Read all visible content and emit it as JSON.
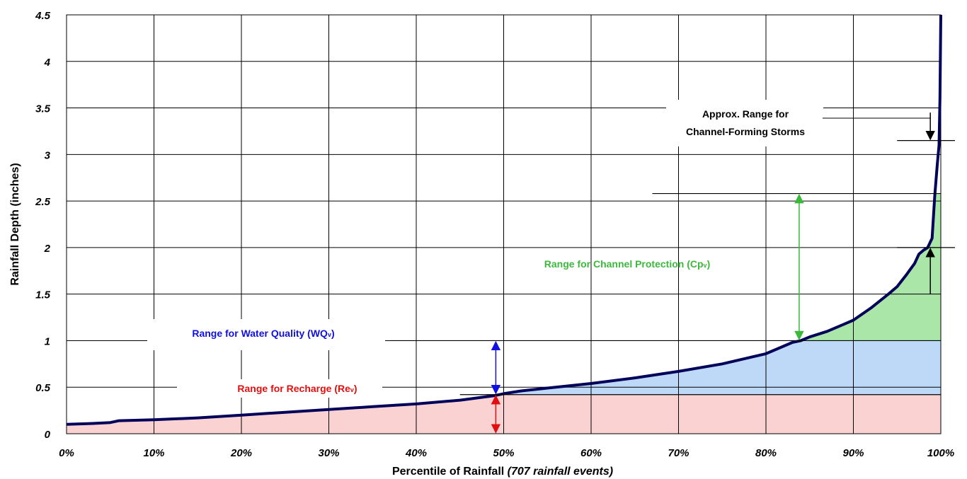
{
  "chart_data": {
    "type": "line",
    "xlabel": "Percentile of Rainfall",
    "xlabel_note": "(707 rainfall events)",
    "ylabel": "Rainfall Depth (inches)",
    "xlim": [
      0,
      100
    ],
    "ylim": [
      0,
      4.5
    ],
    "grid": true,
    "x_ticks": [
      "0%",
      "10%",
      "20%",
      "30%",
      "40%",
      "50%",
      "60%",
      "70%",
      "80%",
      "90%",
      "100%"
    ],
    "y_ticks": [
      "0",
      "0.5",
      "1",
      "1.5",
      "2",
      "2.5",
      "3",
      "3.5",
      "4",
      "4.5"
    ],
    "series": [
      {
        "name": "",
        "color": "#00005a",
        "x": [
          0,
          3,
          5,
          6,
          10,
          15,
          20,
          25,
          30,
          35,
          40,
          45,
          49,
          50,
          52,
          55,
          60,
          65,
          70,
          75,
          80,
          83,
          84,
          85,
          87,
          89,
          90,
          92,
          94,
          95,
          96,
          97,
          97.5,
          98,
          98.5,
          99,
          99.3,
          99.6,
          99.8,
          99.9,
          100
        ],
        "y": [
          0.1,
          0.11,
          0.12,
          0.14,
          0.15,
          0.17,
          0.2,
          0.23,
          0.26,
          0.29,
          0.32,
          0.36,
          0.41,
          0.43,
          0.46,
          0.49,
          0.54,
          0.6,
          0.67,
          0.75,
          0.86,
          0.98,
          1.0,
          1.04,
          1.1,
          1.18,
          1.22,
          1.35,
          1.5,
          1.58,
          1.7,
          1.83,
          1.93,
          1.97,
          2.0,
          2.1,
          2.55,
          2.9,
          3.1,
          3.6,
          4.5
        ]
      }
    ],
    "bands": [
      {
        "name": "recharge",
        "ymax": 0.42,
        "xmax": 100,
        "color": "#fad2d2"
      },
      {
        "name": "water-quality",
        "ymin": 0.42,
        "ymax": 1.0,
        "xmin": 49,
        "xmax": 100,
        "color": "#bed8f8"
      },
      {
        "name": "channel-protection",
        "ymin": 1.0,
        "ymax": 2.58,
        "xmin": 83.5,
        "xmax": 100,
        "color": "#aae6a8"
      }
    ],
    "annotations": {
      "channel_forming": {
        "line1": "Approx. Range for",
        "line2": "Channel-Forming Storms",
        "color": "#000000"
      },
      "channel_protection": {
        "text": "Range for Channel Protection (Cp",
        "sub": "v",
        "close": ")",
        "color": "#3cb83c"
      },
      "water_quality": {
        "text": "Range for Water Quality (WQ",
        "sub": "v",
        "close": ")",
        "color": "#1010e0"
      },
      "recharge": {
        "text": "Range for Recharge (Re",
        "sub": "v",
        "close": ")",
        "color": "#e01010"
      }
    },
    "reference_levels": [
      0.42,
      1.0,
      2.0,
      2.58,
      3.15
    ]
  }
}
